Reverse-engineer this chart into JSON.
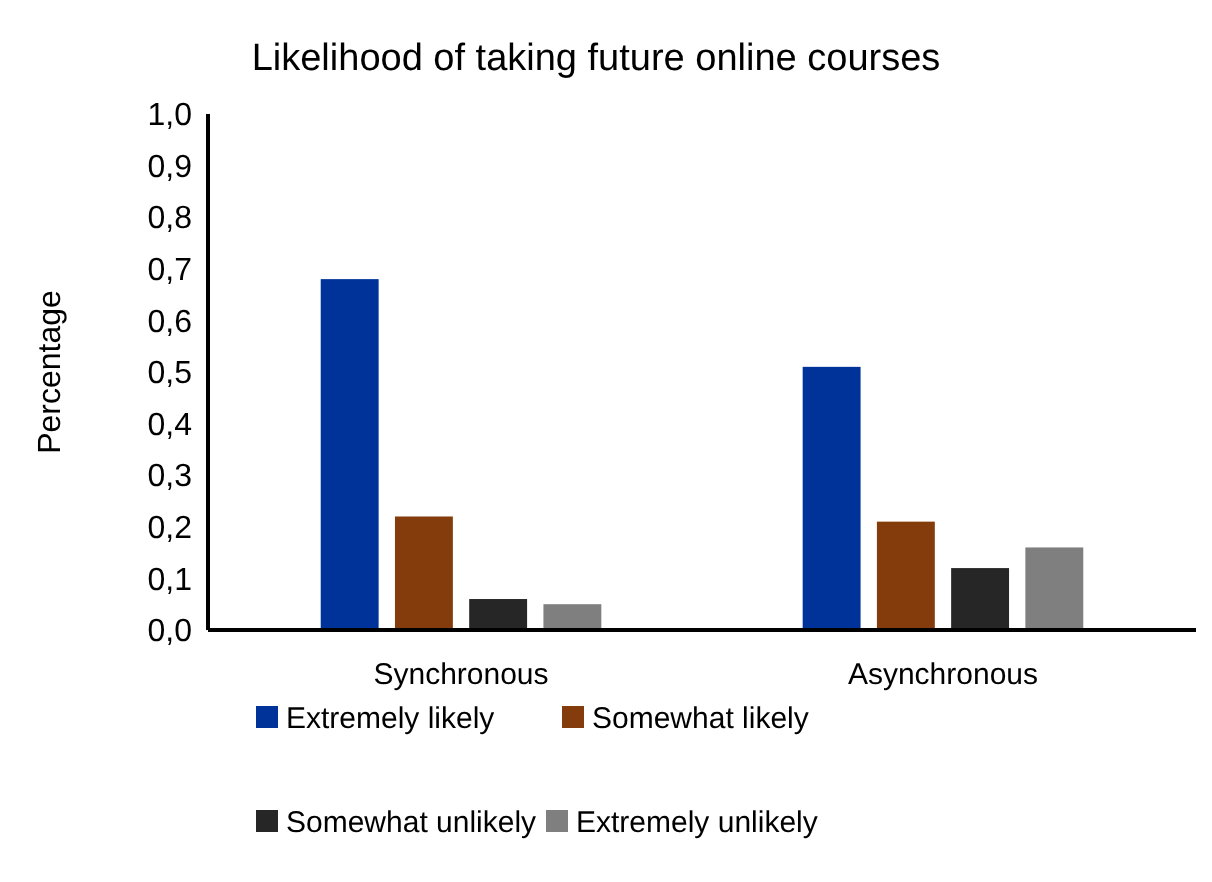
{
  "chart_data": {
    "type": "bar",
    "title": "Likelihood of taking future online courses",
    "ylabel": "Percentage",
    "categories": [
      "Synchronous",
      "Asynchronous"
    ],
    "series": [
      {
        "name": "Extremely likely",
        "color": "#003399",
        "values": [
          0.68,
          0.51
        ]
      },
      {
        "name": "Somewhat likely",
        "color": "#843c0c",
        "values": [
          0.22,
          0.21
        ]
      },
      {
        "name": "Somewhat unlikely",
        "color": "#262626",
        "values": [
          0.06,
          0.12
        ]
      },
      {
        "name": "Extremely unlikely",
        "color": "#7f7f7f",
        "values": [
          0.05,
          0.16
        ]
      }
    ],
    "ylim": [
      0,
      1
    ],
    "yticks": [
      {
        "value": 0,
        "label": "0,0"
      },
      {
        "value": 0.1,
        "label": "0,1"
      },
      {
        "value": 0.2,
        "label": "0,2"
      },
      {
        "value": 0.3,
        "label": "0,3"
      },
      {
        "value": 0.4,
        "label": "0,4"
      },
      {
        "value": 0.5,
        "label": "0,5"
      },
      {
        "value": 0.6,
        "label": "0,6"
      },
      {
        "value": 0.7,
        "label": "0,7"
      },
      {
        "value": 0.8,
        "label": "0,8"
      },
      {
        "value": 0.9,
        "label": "0,9"
      },
      {
        "value": 1,
        "label": "1,0"
      }
    ],
    "grid": false,
    "legend": "bottom"
  }
}
